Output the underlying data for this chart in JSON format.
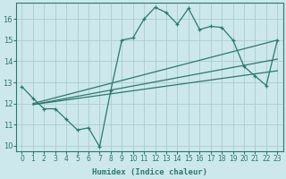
{
  "xlabel": "Humidex (Indice chaleur)",
  "ylabel": "",
  "bg_color": "#cce8ec",
  "grid_color": "#aacccc",
  "line_color": "#2a7a6a",
  "xlim": [
    -0.5,
    23.5
  ],
  "ylim": [
    9.75,
    16.75
  ],
  "xticks": [
    0,
    1,
    2,
    3,
    4,
    5,
    6,
    7,
    8,
    9,
    10,
    11,
    12,
    13,
    14,
    15,
    16,
    17,
    18,
    19,
    20,
    21,
    22,
    23
  ],
  "yticks": [
    10,
    11,
    12,
    13,
    14,
    15,
    16
  ],
  "data_x": [
    0,
    1,
    2,
    3,
    4,
    5,
    6,
    7,
    8,
    9,
    10,
    11,
    12,
    13,
    14,
    15,
    16,
    17,
    18,
    19,
    20,
    21,
    22,
    23
  ],
  "data_y": [
    12.8,
    12.25,
    11.75,
    11.75,
    11.25,
    10.75,
    10.85,
    9.95,
    12.6,
    15.0,
    15.1,
    16.0,
    16.55,
    16.3,
    15.75,
    16.5,
    15.5,
    15.65,
    15.6,
    15.0,
    13.75,
    13.3,
    12.85,
    15.0
  ],
  "line1_x": [
    1,
    23
  ],
  "line1_y": [
    12.0,
    15.0
  ],
  "line2_x": [
    1,
    23
  ],
  "line2_y": [
    11.95,
    14.1
  ],
  "line3_x": [
    1,
    23
  ],
  "line3_y": [
    11.95,
    13.55
  ]
}
